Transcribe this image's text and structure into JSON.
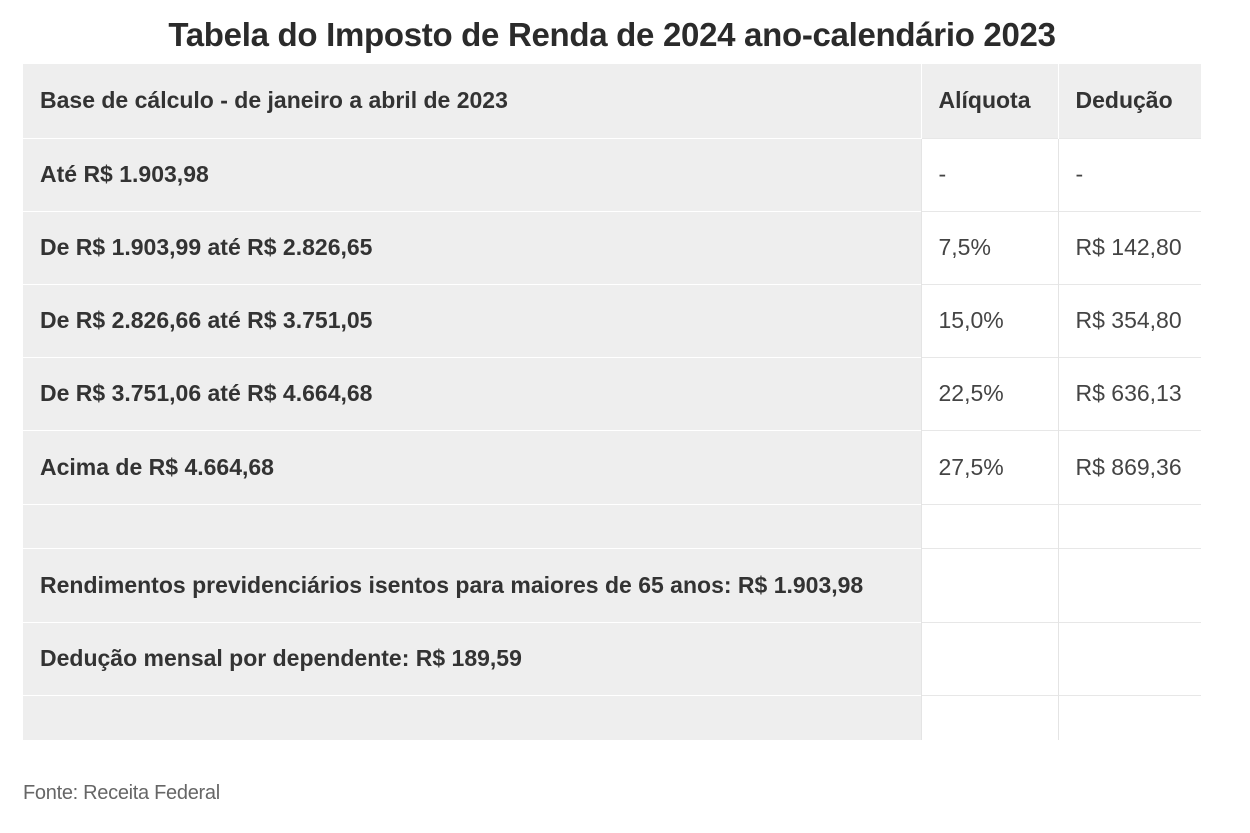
{
  "title": "Tabela do Imposto de Renda de 2024 ano-calendário 2023",
  "table": {
    "headers": {
      "base": "Base de cálculo - de janeiro a abril de 2023",
      "rate": "Alíquota",
      "deduction": "Dedução"
    },
    "rows": [
      {
        "base": "Até R$ 1.903,98",
        "rate": "-",
        "deduction": "-"
      },
      {
        "base": "De R$ 1.903,99 até R$ 2.826,65",
        "rate": "7,5%",
        "deduction": "R$ 142,80"
      },
      {
        "base": "De R$ 2.826,66 até R$ 3.751,05",
        "rate": "15,0%",
        "deduction": "R$ 354,80"
      },
      {
        "base": "De R$ 3.751,06 até R$ 4.664,68",
        "rate": "22,5%",
        "deduction": "R$ 636,13"
      },
      {
        "base": "Acima de R$ 4.664,68",
        "rate": "27,5%",
        "deduction": "R$ 869,36"
      },
      {
        "base": "",
        "rate": "",
        "deduction": ""
      },
      {
        "base": "Rendimentos previdenciários isentos para maiores de 65 anos: R$ 1.903,98",
        "rate": "",
        "deduction": ""
      },
      {
        "base": "Dedução mensal por dependente: R$ 189,59",
        "rate": "",
        "deduction": ""
      },
      {
        "base": "",
        "rate": "",
        "deduction": ""
      }
    ]
  },
  "source": "Fonte: Receita Federal"
}
